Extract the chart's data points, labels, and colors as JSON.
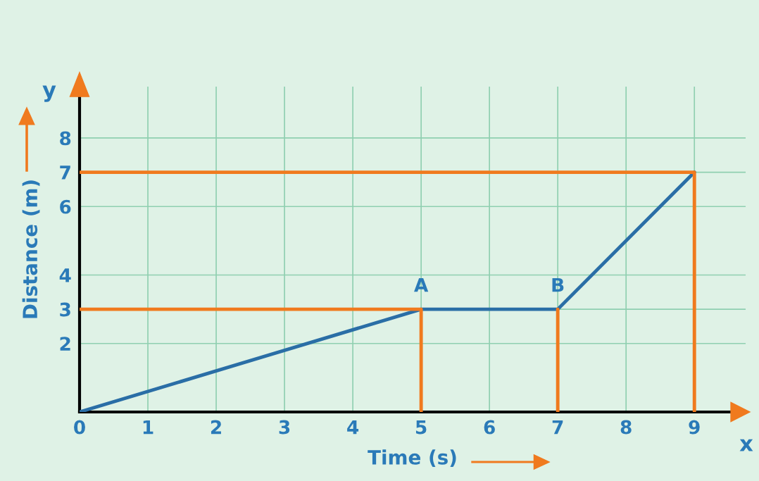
{
  "chart_data": {
    "type": "line",
    "xlabel": "Time (s)",
    "ylabel": "Distance (m)",
    "x": [
      0,
      5,
      7,
      9
    ],
    "series": [
      {
        "color": "#2a6ea6",
        "values": [
          0,
          3,
          3,
          7
        ]
      },
      {
        "color": "#f07a1e",
        "x": [
          0,
          5,
          5
        ],
        "values": [
          3,
          3,
          0
        ]
      },
      {
        "color": "#f07a1e",
        "x": [
          7,
          7
        ],
        "values": [
          0,
          3
        ]
      },
      {
        "color": "#f07a1e",
        "x": [
          0,
          9,
          9
        ],
        "values": [
          7,
          7,
          0
        ]
      }
    ],
    "annotations": [
      {
        "text": "A",
        "x": 5,
        "y": 3
      },
      {
        "text": "B",
        "x": 7,
        "y": 3
      },
      "x",
      "y"
    ],
    "xlim": [
      0,
      9.75
    ],
    "ylim": [
      0,
      9.5
    ],
    "xticks": [
      0,
      1,
      2,
      3,
      4,
      5,
      6,
      7,
      8,
      9
    ],
    "yticks": [
      {
        "value": 0,
        "label": null
      },
      2,
      3,
      4,
      6,
      7,
      8
    ],
    "grid": true
  }
}
